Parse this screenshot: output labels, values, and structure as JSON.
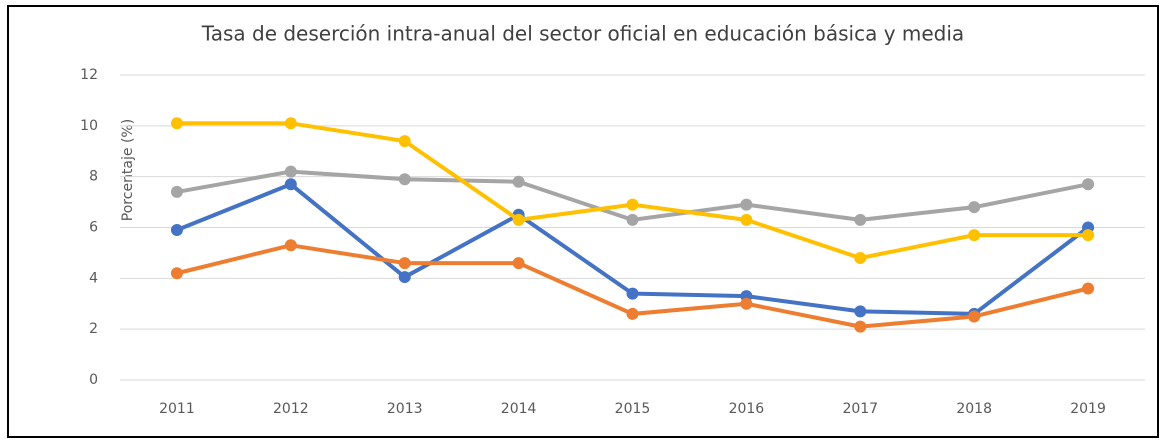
{
  "chart_data": {
    "type": "line",
    "title": "Tasa de deserción intra-anual del sector oficial en educación básica y media",
    "y_label": "Porcentaje (%)",
    "categories": [
      "2011",
      "2012",
      "2013",
      "2014",
      "2015",
      "2016",
      "2017",
      "2018",
      "2019"
    ],
    "series": [
      {
        "color": "#4472c4",
        "values": [
          5.9,
          7.7,
          4.05,
          6.5,
          3.4,
          3.3,
          2.7,
          2.6,
          6.0
        ]
      },
      {
        "color": "#ed7d31",
        "values": [
          4.2,
          5.3,
          4.6,
          4.6,
          2.6,
          3.0,
          2.1,
          2.5,
          3.6
        ]
      },
      {
        "color": "#a5a5a5",
        "values": [
          7.4,
          8.2,
          7.9,
          7.8,
          6.3,
          6.9,
          6.3,
          6.8,
          7.7
        ]
      },
      {
        "color": "#ffc000",
        "values": [
          10.1,
          10.1,
          9.4,
          6.3,
          6.9,
          6.3,
          4.8,
          5.7,
          5.7
        ]
      }
    ],
    "ylim": [
      0,
      12
    ],
    "yticks": [
      0,
      2,
      4,
      6,
      8,
      10,
      12
    ],
    "grid": true
  }
}
